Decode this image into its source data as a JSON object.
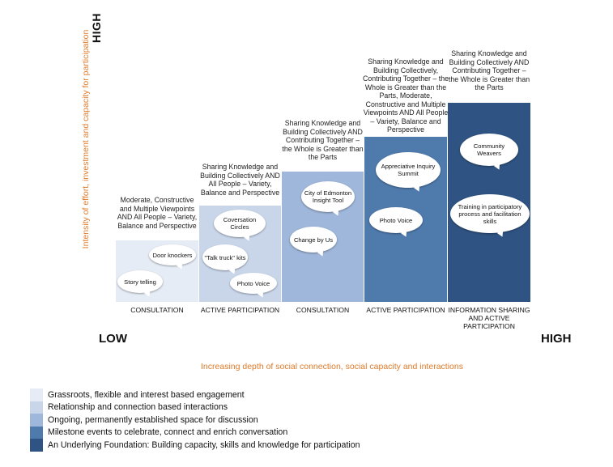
{
  "axes": {
    "y_label": "Intensity of effort, investment and capacity for participation",
    "y_high": "HIGH",
    "x_low": "LOW",
    "x_high": "HIGH",
    "x_label": "Increasing depth of social connection, social capacity and interactions"
  },
  "columns": [
    {
      "caption": "Moderate, Constructive and Multiple Viewpoints AND All People – Variety, Balance and Perspective",
      "category": "CONSULTATION",
      "color": "#e6ecf5",
      "level": 1,
      "bubbles": [
        "Door knockers",
        "Story telling"
      ]
    },
    {
      "caption": "Sharing Knowledge and Building Collectively AND All People – Variety, Balance and Perspective",
      "category": "ACTIVE PARTICIPATION",
      "color": "#c9d6ea",
      "level": 2,
      "bubbles": [
        "Coversation Circles",
        "\"Talk truck\" kits",
        "Photo Voice"
      ]
    },
    {
      "caption": "Sharing Knowledge and Building Collectively AND Contributing Together – the Whole is Greater than the Parts",
      "category": "CONSULTATION",
      "color": "#9fb7da",
      "level": 3,
      "bubbles": [
        "City of Edmonton Insight Tool",
        "Change by Us"
      ]
    },
    {
      "caption": "Sharing Knowledge and Building Collectively, Contributing Together – the Whole is Greater than the Parts, Moderate, Constructive and Multiple Viewpoints AND All People – Variety, Balance and Perspective",
      "category": "ACTIVE PARTICIPATION",
      "color": "#4f7aac",
      "level": 4,
      "bubbles": [
        "Appreciative Inquiry Summit",
        "Photo Voice"
      ]
    },
    {
      "caption": "Sharing Knowledge and Building Collectively AND Contributing Together – the Whole is Greater than the Parts",
      "category": "INFORMATION SHARING AND ACTIVE PARTICIPATION",
      "color": "#2f5382",
      "level": 5,
      "bubbles": [
        "Community Weavers",
        "Training in participatory process and facilitation skills"
      ]
    }
  ],
  "legend": [
    {
      "label": "Grassroots, flexible and interest based engagement",
      "color": "#e6ecf5"
    },
    {
      "label": "Relationship and connection based interactions",
      "color": "#c9d6ea"
    },
    {
      "label": "Ongoing, permanently established space for discussion",
      "color": "#9fb7da"
    },
    {
      "label": "Milestone events to celebrate, connect and enrich conversation",
      "color": "#4f7aac"
    },
    {
      "label": "An Underlying Foundation: Building capacity, skills and knowledge for participation",
      "color": "#2f5382"
    }
  ]
}
